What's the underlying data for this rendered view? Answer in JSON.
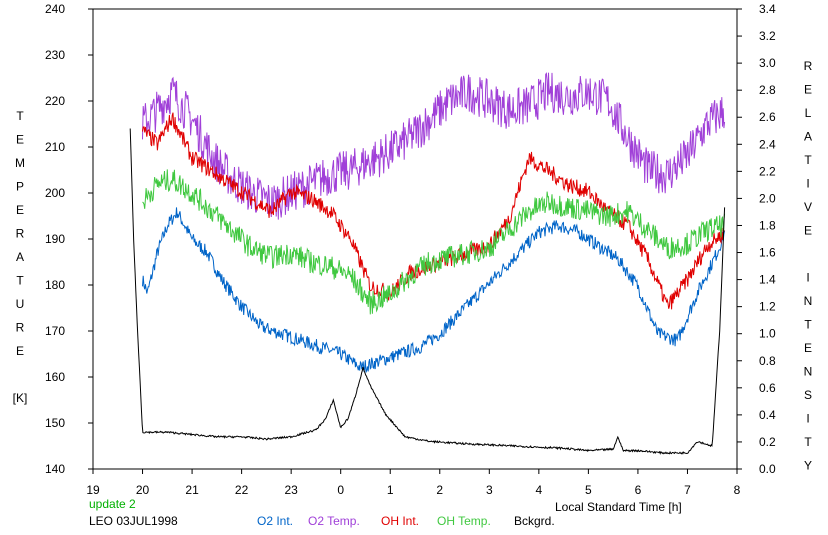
{
  "chart_data": {
    "type": "line",
    "left_axis_label": [
      "T",
      "E",
      "M",
      "P",
      "E",
      "R",
      "A",
      "T",
      "U",
      "R",
      "E",
      "",
      "[K]"
    ],
    "right_axis_label": [
      "R",
      "E",
      "L",
      "A",
      "T",
      "I",
      "V",
      "E",
      "",
      "I",
      "N",
      "T",
      "E",
      "N",
      "S",
      "I",
      "T",
      "Y"
    ],
    "xlabel": "Local Standard Time [h]",
    "x_tick_labels": [
      "19",
      "20",
      "21",
      "22",
      "23",
      "0",
      "1",
      "2",
      "3",
      "4",
      "5",
      "6",
      "7",
      "8"
    ],
    "y_left_ticks": [
      "140",
      "150",
      "160",
      "170",
      "180",
      "190",
      "200",
      "210",
      "220",
      "230",
      "240"
    ],
    "y_right_ticks": [
      "0.0",
      "0.2",
      "0.4",
      "0.6",
      "0.8",
      "1.0",
      "1.2",
      "1.4",
      "1.6",
      "1.8",
      "2.0",
      "2.2",
      "2.4",
      "2.6",
      "2.8",
      "3.0",
      "3.2",
      "3.4"
    ],
    "ylim_left": [
      140,
      240
    ],
    "ylim_right": [
      0,
      3.4
    ],
    "xlim_hours": [
      19,
      32
    ],
    "grid": false,
    "series": [
      {
        "name": "O2 Int.",
        "color": "#0064c8",
        "axis": "right",
        "x": [
          20.0,
          20.1,
          20.3,
          20.5,
          20.7,
          21.0,
          21.3,
          21.6,
          22.0,
          22.4,
          22.8,
          23.2,
          23.6,
          24.0,
          24.4,
          24.8,
          25.2,
          25.6,
          26.0,
          26.4,
          26.8,
          27.2,
          27.6,
          28.0,
          28.4,
          28.8,
          29.2,
          29.6,
          30.0,
          30.4,
          30.8,
          31.2,
          31.6,
          31.75
        ],
        "y": [
          1.4,
          1.3,
          1.6,
          1.8,
          1.9,
          1.7,
          1.6,
          1.4,
          1.2,
          1.05,
          1.0,
          0.95,
          0.9,
          0.85,
          0.75,
          0.8,
          0.85,
          0.9,
          1.0,
          1.15,
          1.3,
          1.45,
          1.6,
          1.75,
          1.8,
          1.75,
          1.65,
          1.55,
          1.35,
          1.0,
          0.95,
          1.3,
          1.6,
          1.75
        ]
      },
      {
        "name": "O2 Temp.",
        "color": "#a040d8",
        "axis": "left",
        "x": [
          20.0,
          20.3,
          20.6,
          21.0,
          21.4,
          21.8,
          22.2,
          22.6,
          23.0,
          23.4,
          23.8,
          24.2,
          24.6,
          25.0,
          25.4,
          25.8,
          26.2,
          26.6,
          27.0,
          27.4,
          27.8,
          28.2,
          28.6,
          29.0,
          29.4,
          29.8,
          30.2,
          30.6,
          31.0,
          31.4,
          31.75
        ],
        "y": [
          215,
          218,
          222,
          216,
          208,
          203,
          200,
          198,
          200,
          202,
          204,
          205,
          207,
          209,
          212,
          216,
          220,
          222,
          220,
          218,
          219,
          222,
          221,
          222,
          220,
          212,
          205,
          204,
          208,
          215,
          218
        ]
      },
      {
        "name": "OH Int.",
        "color": "#e00000",
        "axis": "right",
        "x": [
          20.0,
          20.3,
          20.6,
          21.0,
          21.4,
          21.8,
          22.2,
          22.6,
          23.0,
          23.4,
          23.8,
          24.2,
          24.6,
          25.0,
          25.4,
          25.8,
          26.2,
          26.6,
          27.0,
          27.4,
          27.8,
          28.2,
          28.6,
          29.0,
          29.4,
          29.8,
          30.2,
          30.6,
          31.0,
          31.4,
          31.75
        ],
        "y": [
          2.5,
          2.4,
          2.6,
          2.3,
          2.2,
          2.1,
          2.0,
          1.9,
          2.05,
          2.0,
          1.9,
          1.7,
          1.35,
          1.3,
          1.45,
          1.5,
          1.55,
          1.6,
          1.65,
          1.85,
          2.3,
          2.2,
          2.1,
          2.05,
          1.9,
          1.8,
          1.55,
          1.2,
          1.4,
          1.65,
          1.75
        ]
      },
      {
        "name": "OH Temp.",
        "color": "#40c840",
        "axis": "left",
        "x": [
          20.0,
          20.3,
          20.6,
          21.0,
          21.4,
          21.8,
          22.2,
          22.6,
          23.0,
          23.4,
          23.8,
          24.2,
          24.6,
          25.0,
          25.4,
          25.8,
          26.2,
          26.6,
          27.0,
          27.4,
          27.8,
          28.2,
          28.6,
          29.0,
          29.4,
          29.8,
          30.2,
          30.6,
          31.0,
          31.4,
          31.75
        ],
        "y": [
          198,
          202,
          203,
          200,
          196,
          192,
          188,
          186,
          187,
          185,
          184,
          182,
          176,
          178,
          182,
          185,
          186,
          187,
          188,
          192,
          196,
          198,
          197,
          196,
          195,
          196,
          192,
          188,
          189,
          192,
          193
        ]
      },
      {
        "name": "Bckgrd.",
        "color": "#000000",
        "axis": "left",
        "x": [
          19.75,
          19.82,
          19.9,
          20.0,
          20.5,
          21.0,
          21.5,
          22.0,
          22.5,
          23.0,
          23.5,
          23.7,
          23.85,
          24.0,
          24.15,
          24.3,
          24.45,
          24.6,
          24.9,
          25.3,
          25.8,
          26.5,
          27.5,
          28.5,
          29.0,
          29.5,
          29.6,
          29.7,
          30.0,
          30.5,
          31.0,
          31.2,
          31.5,
          31.65,
          31.75
        ],
        "y": [
          214,
          190,
          170,
          148,
          148,
          147.5,
          147,
          147,
          146.5,
          147,
          148.5,
          151,
          155,
          149,
          151,
          156,
          162,
          158,
          152,
          147,
          146,
          145.5,
          145,
          144.5,
          144,
          144.3,
          147,
          144,
          144,
          143.5,
          143.5,
          146,
          145,
          170,
          197
        ]
      }
    ]
  },
  "footer": {
    "update_label": "update 2",
    "site_date": "LEO 03JUL1998",
    "legend": [
      {
        "label": "O2 Int.",
        "color": "#0064c8"
      },
      {
        "label": "O2 Temp.",
        "color": "#a040d8"
      },
      {
        "label": "OH Int.",
        "color": "#e00000"
      },
      {
        "label": "OH Temp.",
        "color": "#40c840"
      },
      {
        "label": "Bckgrd.",
        "color": "#000000"
      }
    ],
    "update_color": "#00b000"
  }
}
